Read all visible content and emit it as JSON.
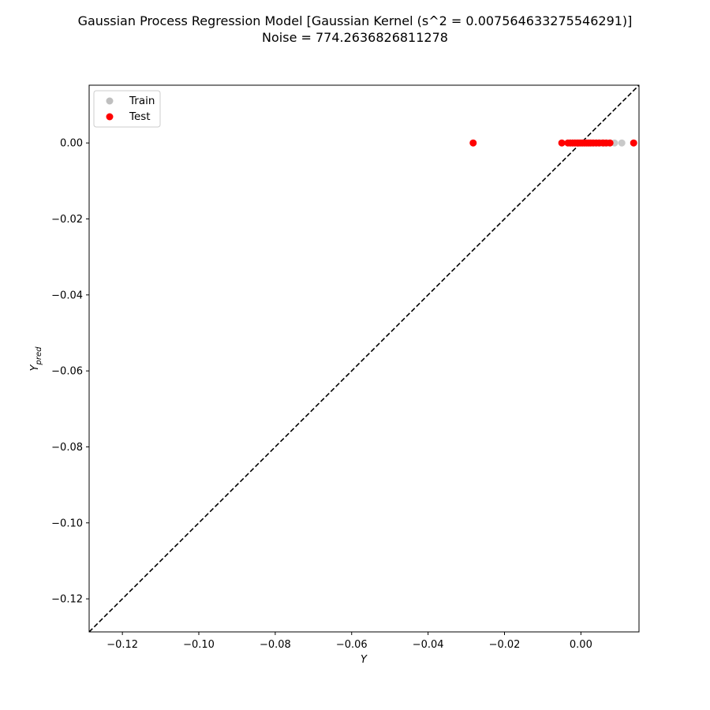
{
  "chart_data": {
    "type": "scatter",
    "title": "Gaussian Process Regression Model [Gaussian Kernel (s^2 = 0.007564633275546291)]",
    "subtitle": "Noise = 774.2636826811278",
    "xlabel": "Y",
    "ylabel_main": "Y",
    "ylabel_sub": "pred",
    "xlim": [
      -0.1287,
      0.0152
    ],
    "ylim": [
      -0.1287,
      0.0152
    ],
    "xticks": [
      -0.12,
      -0.1,
      -0.08,
      -0.06,
      -0.04,
      -0.02,
      0.0
    ],
    "xtick_labels": [
      "−0.12",
      "−0.10",
      "−0.08",
      "−0.06",
      "−0.04",
      "−0.02",
      "0.00"
    ],
    "yticks": [
      0.0,
      -0.02,
      -0.04,
      -0.06,
      -0.08,
      -0.1,
      -0.12
    ],
    "ytick_labels": [
      "0.00",
      "−0.02",
      "−0.04",
      "−0.06",
      "−0.08",
      "−0.10",
      "−0.12"
    ],
    "diagonal": {
      "style": "dashed",
      "color": "#000000"
    },
    "legend_position": "top-left",
    "series": [
      {
        "name": "Train",
        "color": "#bfbfbf",
        "points": [
          [
            -0.0028,
            0.0
          ],
          [
            -0.002,
            0.0
          ],
          [
            -0.0014,
            0.0
          ],
          [
            -0.0008,
            0.0
          ],
          [
            -0.0002,
            0.0
          ],
          [
            0.0004,
            0.0
          ],
          [
            0.001,
            0.0
          ],
          [
            0.0016,
            0.0
          ],
          [
            0.0022,
            0.0
          ],
          [
            0.0028,
            0.0
          ],
          [
            0.0034,
            0.0
          ],
          [
            0.004,
            0.0
          ],
          [
            0.0046,
            0.0
          ],
          [
            0.0052,
            0.0
          ],
          [
            0.006,
            0.0
          ],
          [
            0.007,
            0.0
          ],
          [
            0.0088,
            0.0
          ],
          [
            0.0107,
            0.0
          ]
        ]
      },
      {
        "name": "Test",
        "color": "#ff0000",
        "points": [
          [
            -0.0282,
            0.0
          ],
          [
            -0.005,
            0.0
          ],
          [
            -0.0034,
            0.0
          ],
          [
            -0.0028,
            0.0
          ],
          [
            -0.0022,
            0.0
          ],
          [
            -0.0016,
            0.0
          ],
          [
            -0.001,
            0.0
          ],
          [
            -0.0005,
            0.0
          ],
          [
            0.0,
            0.0
          ],
          [
            0.0005,
            0.0
          ],
          [
            0.001,
            0.0
          ],
          [
            0.0015,
            0.0
          ],
          [
            0.002,
            0.0
          ],
          [
            0.0025,
            0.0
          ],
          [
            0.0032,
            0.0
          ],
          [
            0.004,
            0.0
          ],
          [
            0.0048,
            0.0
          ],
          [
            0.0058,
            0.0
          ],
          [
            0.0066,
            0.0
          ],
          [
            0.0076,
            0.0
          ],
          [
            0.0138,
            0.0
          ]
        ]
      }
    ]
  }
}
